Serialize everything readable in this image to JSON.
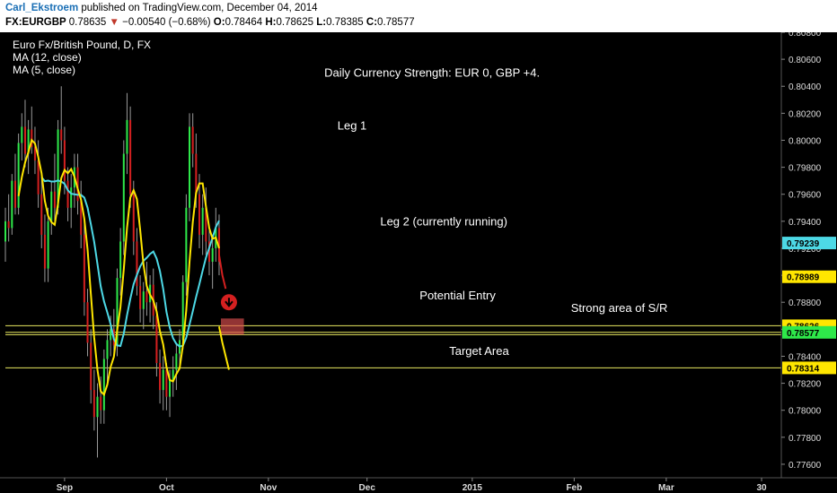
{
  "header": {
    "author": "Carl_Ekstroem",
    "published": "published on TradingView.com, December 04, 2014",
    "symbol": "FX:EURGBP",
    "last": "0.78635",
    "change": "−0.00540 (−0.68%)",
    "o_label": "O:",
    "o": "0.78464",
    "h_label": "H:",
    "h": "0.78625",
    "l_label": "L:",
    "l": "0.78385",
    "c_label": "C:",
    "c": "0.78577",
    "down_arrow": "▼"
  },
  "chart_data": {
    "type": "candlestick",
    "title": "Euro Fx/British Pound, D, FX",
    "indicators": [
      "MA (12, close)",
      "MA (5, close)"
    ],
    "ylim": [
      0.775,
      0.808
    ],
    "y_ticks": [
      0.776,
      0.778,
      0.78,
      0.782,
      0.784,
      0.786,
      0.788,
      0.79,
      0.792,
      0.794,
      0.796,
      0.798,
      0.8,
      0.802,
      0.804,
      0.806,
      0.808
    ],
    "y_tick_labels": [
      "0.77600",
      "0.77800",
      "0.78000",
      "0.78200",
      "0.78400",
      "0.78600",
      "0.78800",
      "0.79000",
      "0.79200",
      "0.79400",
      "0.79600",
      "0.79800",
      "0.80000",
      "0.80200",
      "0.80400",
      "0.80600",
      "0.80800"
    ],
    "x_labels": [
      "Sep",
      "Oct",
      "Nov",
      "Dec",
      "2015",
      "Feb",
      "Mar",
      "30"
    ],
    "x_label_days": [
      18,
      49,
      80,
      110,
      142,
      173,
      201,
      230
    ],
    "price_tags": [
      {
        "value": 0.79239,
        "label": "0.79239",
        "color": "#4dd9e6"
      },
      {
        "value": 0.78989,
        "label": "0.78989",
        "color": "#ffe600"
      },
      {
        "value": 0.78626,
        "label": "0.78626",
        "color": "#ffe600"
      },
      {
        "value": 0.78577,
        "label": "0.78577",
        "color": "#2ee84a"
      },
      {
        "value": 0.78314,
        "label": "0.78314",
        "color": "#ffe600"
      }
    ],
    "horizontal_levels": [
      0.78626,
      0.78577,
      0.7856,
      0.78314
    ],
    "annotations": [
      {
        "text": "Daily Currency Strength: EUR 0, GBP +4.",
        "day": 97,
        "value": 0.8047
      },
      {
        "text": "Leg 1",
        "day": 101,
        "value": 0.8008
      },
      {
        "text": "Leg 2 (currently running)",
        "day": 114,
        "value": 0.7937
      },
      {
        "text": "Potential Entry",
        "day": 126,
        "value": 0.7882
      },
      {
        "text": "Strong area of S/R",
        "day": 172,
        "value": 0.7873
      },
      {
        "text": "Target Area",
        "day": 135,
        "value": 0.7841
      }
    ],
    "candles": [
      {
        "day": 0,
        "o": 0.7925,
        "h": 0.795,
        "l": 0.791,
        "c": 0.794
      },
      {
        "day": 1,
        "o": 0.794,
        "h": 0.796,
        "l": 0.7925,
        "c": 0.7935
      },
      {
        "day": 2,
        "o": 0.7935,
        "h": 0.7975,
        "l": 0.793,
        "c": 0.797
      },
      {
        "day": 3,
        "o": 0.797,
        "h": 0.799,
        "l": 0.7945,
        "c": 0.795
      },
      {
        "day": 4,
        "o": 0.795,
        "h": 0.8005,
        "l": 0.7945,
        "c": 0.7998
      },
      {
        "day": 5,
        "o": 0.7998,
        "h": 0.802,
        "l": 0.7985,
        "c": 0.801
      },
      {
        "day": 6,
        "o": 0.801,
        "h": 0.803,
        "l": 0.798,
        "c": 0.799
      },
      {
        "day": 7,
        "o": 0.799,
        "h": 0.8015,
        "l": 0.7975,
        "c": 0.8008
      },
      {
        "day": 8,
        "o": 0.8008,
        "h": 0.8025,
        "l": 0.799,
        "c": 0.7995
      },
      {
        "day": 9,
        "o": 0.7995,
        "h": 0.801,
        "l": 0.7975,
        "c": 0.7985
      },
      {
        "day": 10,
        "o": 0.7985,
        "h": 0.8,
        "l": 0.795,
        "c": 0.796
      },
      {
        "day": 11,
        "o": 0.796,
        "h": 0.7975,
        "l": 0.792,
        "c": 0.793
      },
      {
        "day": 12,
        "o": 0.793,
        "h": 0.7945,
        "l": 0.7895,
        "c": 0.7905
      },
      {
        "day": 13,
        "o": 0.7905,
        "h": 0.795,
        "l": 0.7895,
        "c": 0.794
      },
      {
        "day": 14,
        "o": 0.794,
        "h": 0.797,
        "l": 0.793,
        "c": 0.7962
      },
      {
        "day": 15,
        "o": 0.7962,
        "h": 0.799,
        "l": 0.794,
        "c": 0.795
      },
      {
        "day": 16,
        "o": 0.795,
        "h": 0.8015,
        "l": 0.7945,
        "c": 0.8008
      },
      {
        "day": 17,
        "o": 0.8008,
        "h": 0.804,
        "l": 0.799,
        "c": 0.8
      },
      {
        "day": 18,
        "o": 0.8,
        "h": 0.801,
        "l": 0.796,
        "c": 0.797
      },
      {
        "day": 19,
        "o": 0.797,
        "h": 0.798,
        "l": 0.794,
        "c": 0.795
      },
      {
        "day": 20,
        "o": 0.795,
        "h": 0.7975,
        "l": 0.7935,
        "c": 0.7965
      },
      {
        "day": 21,
        "o": 0.7965,
        "h": 0.799,
        "l": 0.795,
        "c": 0.798
      },
      {
        "day": 22,
        "o": 0.798,
        "h": 0.799,
        "l": 0.7945,
        "c": 0.7955
      },
      {
        "day": 23,
        "o": 0.7955,
        "h": 0.797,
        "l": 0.792,
        "c": 0.793
      },
      {
        "day": 24,
        "o": 0.793,
        "h": 0.794,
        "l": 0.787,
        "c": 0.788
      },
      {
        "day": 25,
        "o": 0.788,
        "h": 0.789,
        "l": 0.784,
        "c": 0.785
      },
      {
        "day": 26,
        "o": 0.785,
        "h": 0.786,
        "l": 0.7805,
        "c": 0.7815
      },
      {
        "day": 27,
        "o": 0.7815,
        "h": 0.783,
        "l": 0.7785,
        "c": 0.7795
      },
      {
        "day": 28,
        "o": 0.7795,
        "h": 0.782,
        "l": 0.7765,
        "c": 0.781
      },
      {
        "day": 29,
        "o": 0.781,
        "h": 0.7825,
        "l": 0.779,
        "c": 0.78
      },
      {
        "day": 30,
        "o": 0.78,
        "h": 0.7845,
        "l": 0.779,
        "c": 0.7838
      },
      {
        "day": 31,
        "o": 0.7838,
        "h": 0.786,
        "l": 0.782,
        "c": 0.7852
      },
      {
        "day": 32,
        "o": 0.7852,
        "h": 0.787,
        "l": 0.784,
        "c": 0.786
      },
      {
        "day": 33,
        "o": 0.786,
        "h": 0.7875,
        "l": 0.784,
        "c": 0.7848
      },
      {
        "day": 34,
        "o": 0.7848,
        "h": 0.7905,
        "l": 0.784,
        "c": 0.7898
      },
      {
        "day": 35,
        "o": 0.7898,
        "h": 0.7935,
        "l": 0.7885,
        "c": 0.7925
      },
      {
        "day": 36,
        "o": 0.7925,
        "h": 0.8,
        "l": 0.7915,
        "c": 0.799
      },
      {
        "day": 37,
        "o": 0.799,
        "h": 0.8035,
        "l": 0.7975,
        "c": 0.8015
      },
      {
        "day": 38,
        "o": 0.8015,
        "h": 0.8025,
        "l": 0.795,
        "c": 0.796
      },
      {
        "day": 39,
        "o": 0.796,
        "h": 0.797,
        "l": 0.7915,
        "c": 0.7925
      },
      {
        "day": 40,
        "o": 0.7925,
        "h": 0.7935,
        "l": 0.7885,
        "c": 0.7892
      },
      {
        "day": 41,
        "o": 0.7892,
        "h": 0.79,
        "l": 0.7865,
        "c": 0.7875
      },
      {
        "day": 42,
        "o": 0.7875,
        "h": 0.7895,
        "l": 0.786,
        "c": 0.7888
      },
      {
        "day": 43,
        "o": 0.7888,
        "h": 0.791,
        "l": 0.787,
        "c": 0.788
      },
      {
        "day": 44,
        "o": 0.788,
        "h": 0.79,
        "l": 0.7865,
        "c": 0.7893
      },
      {
        "day": 45,
        "o": 0.7893,
        "h": 0.7905,
        "l": 0.786,
        "c": 0.787
      },
      {
        "day": 46,
        "o": 0.787,
        "h": 0.788,
        "l": 0.7825,
        "c": 0.7835
      },
      {
        "day": 47,
        "o": 0.7835,
        "h": 0.7845,
        "l": 0.7805,
        "c": 0.7815
      },
      {
        "day": 48,
        "o": 0.7815,
        "h": 0.784,
        "l": 0.78,
        "c": 0.783
      },
      {
        "day": 49,
        "o": 0.783,
        "h": 0.7835,
        "l": 0.78,
        "c": 0.781
      },
      {
        "day": 50,
        "o": 0.781,
        "h": 0.783,
        "l": 0.7795,
        "c": 0.7822
      },
      {
        "day": 51,
        "o": 0.7822,
        "h": 0.784,
        "l": 0.781,
        "c": 0.783
      },
      {
        "day": 52,
        "o": 0.783,
        "h": 0.785,
        "l": 0.7815,
        "c": 0.7842
      },
      {
        "day": 53,
        "o": 0.7842,
        "h": 0.786,
        "l": 0.783,
        "c": 0.7852
      },
      {
        "day": 54,
        "o": 0.7852,
        "h": 0.79,
        "l": 0.7845,
        "c": 0.7895
      },
      {
        "day": 55,
        "o": 0.7895,
        "h": 0.796,
        "l": 0.7885,
        "c": 0.795
      },
      {
        "day": 56,
        "o": 0.795,
        "h": 0.802,
        "l": 0.794,
        "c": 0.801
      },
      {
        "day": 57,
        "o": 0.801,
        "h": 0.802,
        "l": 0.798,
        "c": 0.799
      },
      {
        "day": 58,
        "o": 0.799,
        "h": 0.8005,
        "l": 0.795,
        "c": 0.796
      },
      {
        "day": 59,
        "o": 0.796,
        "h": 0.7975,
        "l": 0.792,
        "c": 0.793
      },
      {
        "day": 60,
        "o": 0.793,
        "h": 0.796,
        "l": 0.7915,
        "c": 0.795
      },
      {
        "day": 61,
        "o": 0.795,
        "h": 0.7965,
        "l": 0.7915,
        "c": 0.7925
      },
      {
        "day": 62,
        "o": 0.7925,
        "h": 0.7935,
        "l": 0.79,
        "c": 0.791
      },
      {
        "day": 63,
        "o": 0.791,
        "h": 0.793,
        "l": 0.789,
        "c": 0.792
      },
      {
        "day": 64,
        "o": 0.792,
        "h": 0.795,
        "l": 0.791,
        "c": 0.7935
      },
      {
        "day": 65,
        "o": 0.7935,
        "h": 0.7945,
        "l": 0.79,
        "c": 0.791
      }
    ],
    "ma12": [],
    "ma5": []
  }
}
